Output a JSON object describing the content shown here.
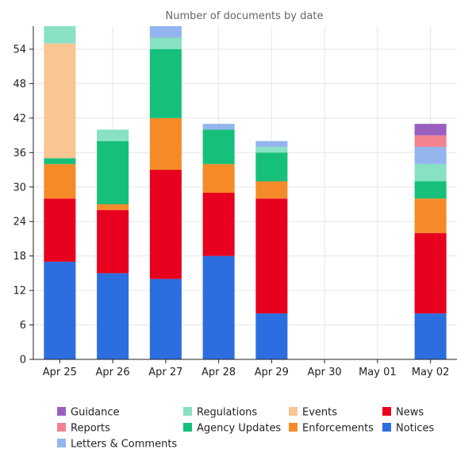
{
  "chart_data": {
    "type": "bar",
    "stacked": true,
    "title": "Number of documents by date",
    "xlabel": "",
    "ylabel": "",
    "ylim": [
      0,
      58
    ],
    "yticks": [
      0,
      6,
      12,
      18,
      24,
      30,
      36,
      42,
      48,
      54
    ],
    "grid": true,
    "legend_position": "bottom",
    "categories": [
      "Apr 25",
      "Apr 26",
      "Apr 27",
      "Apr 28",
      "Apr 29",
      "Apr 30",
      "May 01",
      "May 02"
    ],
    "series": [
      {
        "name": "Notices",
        "color": "#2c6ee0",
        "values": [
          17,
          15,
          14,
          18,
          8,
          0,
          0,
          8
        ]
      },
      {
        "name": "News",
        "color": "#e8001f",
        "values": [
          11,
          11,
          19,
          11,
          20,
          0,
          0,
          14
        ]
      },
      {
        "name": "Enforcements",
        "color": "#f48b28",
        "values": [
          6,
          1,
          9,
          5,
          3,
          0,
          0,
          6
        ]
      },
      {
        "name": "Agency Updates",
        "color": "#16c07a",
        "values": [
          1,
          11,
          12,
          6,
          5,
          0,
          0,
          3
        ]
      },
      {
        "name": "Events",
        "color": "#f8c593",
        "values": [
          20,
          0,
          0,
          0,
          0,
          0,
          0,
          0
        ]
      },
      {
        "name": "Regulations",
        "color": "#88e1c2",
        "values": [
          3,
          2,
          2,
          0,
          1,
          0,
          0,
          3
        ]
      },
      {
        "name": "Letters & Comments",
        "color": "#93b4ef",
        "values": [
          0,
          0,
          2,
          1,
          1,
          0,
          0,
          3
        ]
      },
      {
        "name": "Reports",
        "color": "#f4828f",
        "values": [
          0,
          0,
          0,
          0,
          0,
          0,
          0,
          2
        ]
      },
      {
        "name": "Guidance",
        "color": "#9b5fc1",
        "values": [
          0,
          0,
          0,
          0,
          0,
          0,
          0,
          2
        ]
      }
    ],
    "legend_order": [
      "Guidance",
      "Regulations",
      "Events",
      "News",
      "Reports",
      "Agency Updates",
      "Enforcements",
      "Notices",
      "Letters & Comments"
    ]
  }
}
